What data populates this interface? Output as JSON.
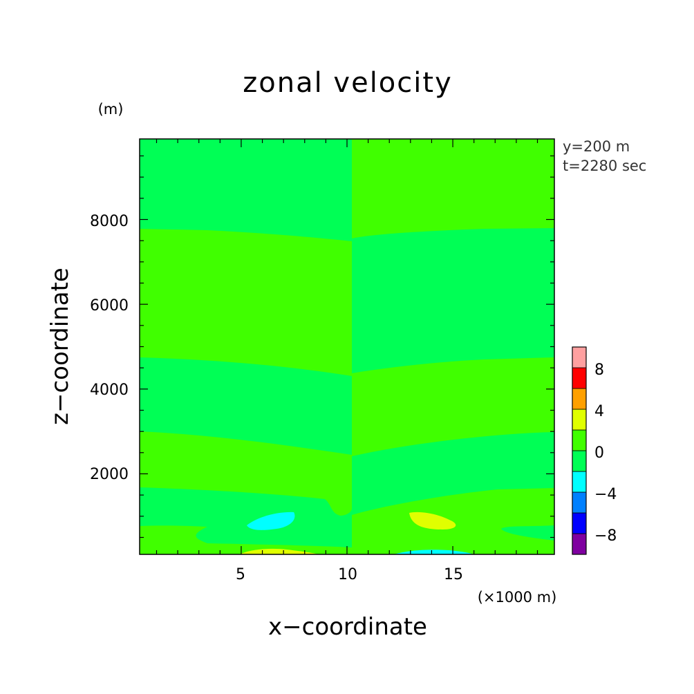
{
  "chart_data": {
    "type": "heatmap",
    "title": "zonal velocity",
    "xlabel": "x−coordinate",
    "ylabel": "z−coordinate",
    "x_unit": "(×1000 m)",
    "y_unit": "(m)",
    "xlim": [
      0.2,
      19.8
    ],
    "ylim": [
      100,
      9900
    ],
    "x_ticks": [
      5,
      10,
      15
    ],
    "x_tick_labels": [
      "5",
      "10",
      "15"
    ],
    "y_ticks": [
      2000,
      4000,
      6000,
      8000
    ],
    "y_tick_labels": [
      "2000",
      "4000",
      "6000",
      "8000"
    ],
    "annotations": [
      "y=200 m",
      "t=2280 sec"
    ],
    "colorbar": {
      "levels": [
        -10,
        -8,
        -6,
        -4,
        -2,
        0,
        2,
        4,
        6,
        8,
        10
      ],
      "tick_labels": [
        "−8",
        "−4",
        "0",
        "4",
        "8"
      ],
      "tick_values": [
        -8,
        -4,
        0,
        4,
        8
      ],
      "colors": [
        "#7f00a0",
        "#0000ff",
        "#0080ff",
        "#00ffff",
        "#00ff55",
        "#40ff00",
        "#e0ff00",
        "#ffa000",
        "#ff0000",
        "#ffa0a0"
      ]
    },
    "regions": [
      {
        "value_range": [
          -2,
          0
        ],
        "x": [
          0.2,
          10.2
        ],
        "z": [
          7780,
          9900
        ]
      },
      {
        "value_range": [
          0,
          2
        ],
        "x": [
          10.2,
          19.8
        ],
        "z": [
          7780,
          9900
        ]
      },
      {
        "value_range": [
          0,
          2
        ],
        "x": [
          0.2,
          10.2
        ],
        "z": [
          4720,
          7780
        ]
      },
      {
        "value_range": [
          -2,
          0
        ],
        "x": [
          10.2,
          19.8
        ],
        "z": [
          4720,
          7780
        ]
      },
      {
        "value_range": [
          -2,
          0
        ],
        "x": [
          0.2,
          10.2
        ],
        "z": [
          2980,
          4720
        ]
      },
      {
        "value_range": [
          0,
          2
        ],
        "x": [
          10.2,
          19.8
        ],
        "z": [
          2980,
          4720
        ]
      },
      {
        "value_range": [
          0,
          2
        ],
        "x": [
          0.2,
          10.2
        ],
        "z": [
          1620,
          2980
        ]
      },
      {
        "value_range": [
          -2,
          0
        ],
        "x": [
          10.2,
          19.8
        ],
        "z": [
          1620,
          2980
        ]
      },
      {
        "value_range": [
          -4,
          -2
        ],
        "x": [
          5.5,
          7.5
        ],
        "z": [
          600,
          1100
        ]
      },
      {
        "value_range": [
          2,
          4
        ],
        "x": [
          13.0,
          15.3
        ],
        "z": [
          600,
          1100
        ]
      },
      {
        "value_range": [
          2,
          4
        ],
        "x": [
          5.5,
          8.5
        ],
        "z": [
          100,
          250
        ]
      },
      {
        "value_range": [
          -4,
          -2
        ],
        "x": [
          12.0,
          16.0
        ],
        "z": [
          100,
          250
        ]
      }
    ],
    "grid": false
  }
}
